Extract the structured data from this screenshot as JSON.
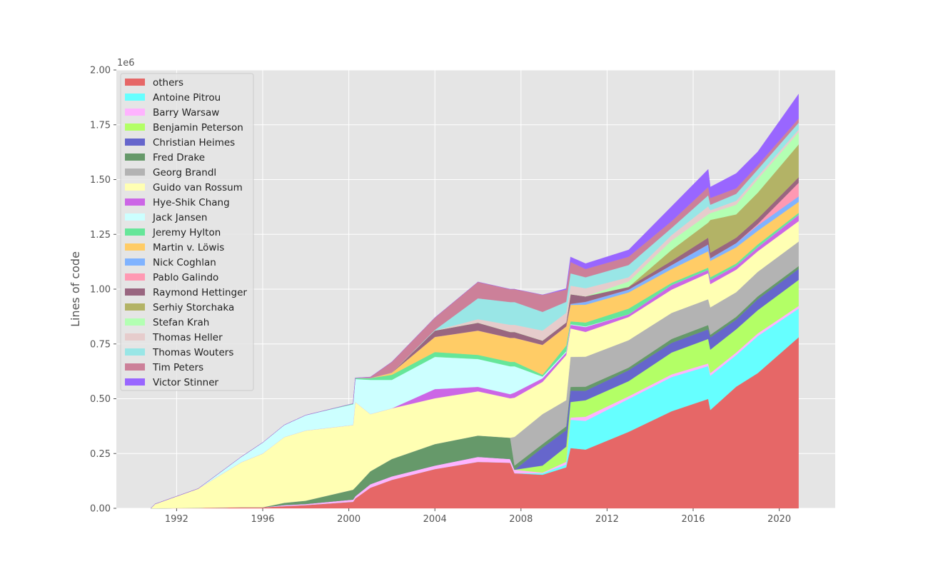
{
  "chart_data": {
    "type": "area",
    "stacked": true,
    "title": "",
    "xlabel": "",
    "ylabel": "Lines of code",
    "y_offset_label": "1e6",
    "xlim": [
      1989.2,
      2022.6
    ],
    "ylim": [
      0,
      2000000
    ],
    "grid": true,
    "legend_position": "top-left",
    "x_ticks": [
      1992,
      1996,
      2000,
      2004,
      2008,
      2012,
      2016,
      2020
    ],
    "x_tick_labels": [
      "1992",
      "1996",
      "2000",
      "2004",
      "2008",
      "2012",
      "2016",
      "2020"
    ],
    "y_ticks": [
      0,
      250000,
      500000,
      750000,
      1000000,
      1250000,
      1500000,
      1750000,
      2000000
    ],
    "y_tick_labels": [
      "0.00",
      "0.25",
      "0.50",
      "0.75",
      "1.00",
      "1.25",
      "1.50",
      "1.75",
      "2.00"
    ],
    "value_unit": "thousands of lines",
    "x": [
      1990.8,
      1991,
      1993,
      1995,
      1996,
      1997,
      1998,
      2000.2,
      2000.3,
      2001,
      2002,
      2004,
      2006,
      2007.5,
      2007.7,
      2009,
      2010.1,
      2010.3,
      2011,
      2013,
      2015,
      2016.7,
      2016.8,
      2018,
      2019,
      2020.9
    ],
    "series": [
      {
        "name": "others",
        "color": "#e66767",
        "values": [
          0,
          0,
          2,
          5,
          5,
          10,
          15,
          30,
          45,
          94,
          130,
          179,
          212,
          208,
          160,
          153,
          187,
          275,
          268,
          349,
          443,
          499,
          449,
          555,
          617,
          780
        ]
      },
      {
        "name": "Antoine Pitrou",
        "color": "#66ffff",
        "values": [
          0,
          0,
          0,
          0,
          0,
          0,
          0,
          0,
          0,
          0,
          0,
          0,
          0,
          0,
          0,
          7,
          13,
          129,
          131,
          150,
          156,
          150,
          156,
          144,
          169,
          131
        ]
      },
      {
        "name": "Barry Warsaw",
        "color": "#ffb3ff",
        "values": [
          0,
          0,
          0,
          0,
          0,
          5,
          5,
          10,
          10,
          16,
          16,
          16,
          23,
          17,
          16,
          3,
          12,
          10,
          19,
          12,
          12,
          12,
          12,
          12,
          12,
          12
        ]
      },
      {
        "name": "Benjamin Peterson",
        "color": "#b3ff66",
        "values": [
          0,
          0,
          0,
          0,
          0,
          0,
          0,
          0,
          0,
          0,
          0,
          0,
          0,
          0,
          0,
          32,
          69,
          71,
          75,
          69,
          100,
          112,
          107,
          106,
          106,
          119
        ]
      },
      {
        "name": "Christian Heimes",
        "color": "#6666cc",
        "values": [
          0,
          0,
          0,
          0,
          0,
          0,
          0,
          0,
          0,
          0,
          0,
          0,
          0,
          0,
          0,
          82,
          75,
          52,
          43,
          50,
          44,
          44,
          56,
          44,
          50,
          50
        ]
      },
      {
        "name": "Fred Drake",
        "color": "#66996a",
        "values": [
          0,
          0,
          0,
          0,
          0,
          10,
          15,
          45,
          40,
          59,
          79,
          98,
          97,
          97,
          19,
          16,
          18,
          17,
          19,
          12,
          18,
          19,
          12,
          13,
          13,
          13
        ]
      },
      {
        "name": "Georg Brandl",
        "color": "#b3b3b3",
        "values": [
          0,
          0,
          0,
          0,
          0,
          0,
          0,
          0,
          0,
          0,
          0,
          0,
          0,
          0,
          131,
          137,
          119,
          137,
          137,
          125,
          119,
          118,
          125,
          112,
          112,
          112
        ]
      },
      {
        "name": "Guido van Rossum",
        "color": "#ffffb3",
        "values": [
          0,
          20,
          88,
          205,
          245,
          300,
          320,
          295,
          390,
          261,
          231,
          209,
          202,
          180,
          179,
          147,
          206,
          130,
          113,
          106,
          106,
          119,
          106,
          103,
          94,
          93
        ]
      },
      {
        "name": "Hye-Shik Chang",
        "color": "#cc66e6",
        "values": [
          0,
          0,
          0,
          0,
          0,
          0,
          0,
          0,
          0,
          0,
          0,
          42,
          20,
          19,
          23,
          16,
          12,
          16,
          22,
          12,
          21,
          15,
          19,
          18,
          18,
          29
        ]
      },
      {
        "name": "Jack Jansen",
        "color": "#ccffff",
        "values": [
          0,
          0,
          0,
          25,
          50,
          55,
          70,
          95,
          105,
          156,
          130,
          147,
          127,
          127,
          120,
          8,
          5,
          3,
          3,
          0,
          0,
          0,
          0,
          0,
          0,
          0
        ]
      },
      {
        "name": "Jeremy Hylton",
        "color": "#66e699",
        "values": [
          0,
          0,
          0,
          0,
          0,
          0,
          0,
          3,
          5,
          8,
          23,
          22,
          19,
          20,
          20,
          8,
          26,
          13,
          18,
          26,
          10,
          10,
          12,
          10,
          13,
          9
        ]
      },
      {
        "name": "Martin v. Löwis",
        "color": "#ffcc66",
        "values": [
          0,
          0,
          0,
          0,
          0,
          0,
          0,
          0,
          0,
          0,
          10,
          69,
          111,
          110,
          110,
          137,
          88,
          75,
          81,
          74,
          63,
          75,
          75,
          74,
          62,
          50
        ]
      },
      {
        "name": "Nick Coghlan",
        "color": "#80b3ff",
        "values": [
          0,
          0,
          0,
          0,
          0,
          0,
          0,
          0,
          0,
          0,
          0,
          0,
          0,
          0,
          0,
          0,
          0,
          5,
          13,
          13,
          18,
          31,
          12,
          19,
          25,
          25
        ]
      },
      {
        "name": "Pablo Galindo",
        "color": "#ff99b3",
        "values": [
          0,
          0,
          0,
          0,
          0,
          0,
          0,
          0,
          0,
          0,
          0,
          0,
          0,
          0,
          0,
          0,
          0,
          0,
          0,
          0,
          0,
          0,
          0,
          0,
          6,
          62
        ]
      },
      {
        "name": "Raymond Hettinger",
        "color": "#996680",
        "values": [
          0,
          0,
          0,
          0,
          0,
          0,
          0,
          0,
          0,
          0,
          0,
          29,
          36,
          27,
          27,
          19,
          18,
          44,
          25,
          12,
          19,
          31,
          25,
          25,
          25,
          25
        ]
      },
      {
        "name": "Serhiy Storchaka",
        "color": "#b3b366",
        "values": [
          0,
          0,
          0,
          0,
          0,
          0,
          0,
          0,
          0,
          0,
          0,
          0,
          0,
          0,
          0,
          0,
          0,
          0,
          0,
          0,
          50,
          69,
          150,
          106,
          118,
          150
        ]
      },
      {
        "name": "Stefan Krah",
        "color": "#b3ffb3",
        "values": [
          0,
          0,
          0,
          0,
          0,
          0,
          0,
          0,
          0,
          0,
          0,
          0,
          0,
          0,
          0,
          0,
          0,
          0,
          0,
          25,
          43,
          37,
          31,
          44,
          62,
          56
        ]
      },
      {
        "name": "Thomas Heller",
        "color": "#e6cccc",
        "values": [
          0,
          0,
          0,
          0,
          0,
          0,
          0,
          0,
          0,
          0,
          0,
          0,
          16,
          32,
          32,
          46,
          44,
          39,
          37,
          19,
          25,
          37,
          13,
          18,
          13,
          12
        ]
      },
      {
        "name": "Thomas Wouters",
        "color": "#99e6e6",
        "values": [
          0,
          0,
          0,
          0,
          0,
          0,
          0,
          0,
          0,
          0,
          0,
          3,
          95,
          104,
          104,
          85,
          50,
          56,
          50,
          56,
          32,
          50,
          25,
          32,
          31,
          31
        ]
      },
      {
        "name": "Tim Peters",
        "color": "#cc8099",
        "values": [
          0,
          0,
          0,
          0,
          0,
          0,
          0,
          0,
          0,
          5,
          49,
          56,
          75,
          59,
          59,
          78,
          56,
          52,
          38,
          38,
          31,
          38,
          31,
          25,
          19,
          19
        ]
      },
      {
        "name": "Victor Stinner",
        "color": "#9966ff",
        "values": [
          0,
          0,
          0,
          0,
          0,
          0,
          0,
          0,
          0,
          0,
          0,
          0,
          0,
          0,
          0,
          0,
          5,
          23,
          25,
          31,
          68,
          81,
          50,
          68,
          62,
          112
        ]
      }
    ]
  }
}
